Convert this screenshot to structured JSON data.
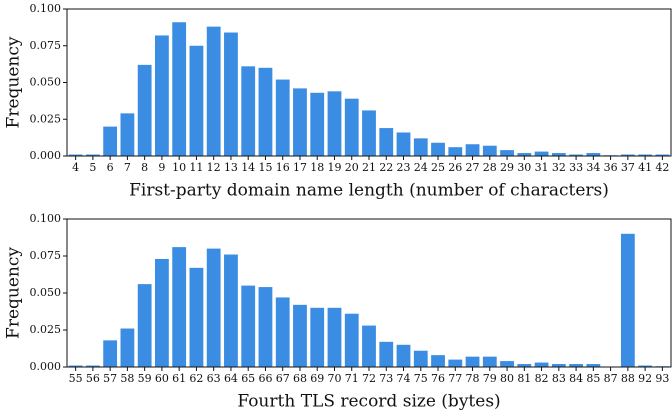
{
  "chart_data": [
    {
      "type": "bar",
      "x_label": "First-party domain name length (number of characters)",
      "y_label": "Frequency",
      "color": "#3a8de3",
      "categories": [
        "4",
        "5",
        "6",
        "7",
        "8",
        "9",
        "10",
        "11",
        "12",
        "13",
        "14",
        "15",
        "16",
        "17",
        "18",
        "19",
        "20",
        "21",
        "22",
        "23",
        "24",
        "25",
        "26",
        "27",
        "28",
        "29",
        "30",
        "31",
        "32",
        "33",
        "34",
        "36",
        "37",
        "41",
        "42"
      ],
      "values": [
        0.001,
        0.001,
        0.02,
        0.029,
        0.062,
        0.082,
        0.091,
        0.075,
        0.088,
        0.084,
        0.061,
        0.06,
        0.052,
        0.046,
        0.043,
        0.044,
        0.039,
        0.031,
        0.019,
        0.016,
        0.012,
        0.009,
        0.006,
        0.008,
        0.007,
        0.004,
        0.002,
        0.003,
        0.002,
        0.001,
        0.002,
        0.0005,
        0.001,
        0.001,
        0.001
      ],
      "ylim": [
        0,
        0.1
      ],
      "yticks": [
        {
          "value": 0,
          "label": "0.000"
        },
        {
          "value": 0.025,
          "label": "0.025"
        },
        {
          "value": 0.05,
          "label": "0.050"
        },
        {
          "value": 0.075,
          "label": "0.075"
        },
        {
          "value": 0.1,
          "label": "0.100"
        }
      ]
    },
    {
      "type": "bar",
      "x_label": "Fourth TLS record size (bytes)",
      "y_label": "Frequency",
      "color": "#3a8de3",
      "categories": [
        "55",
        "56",
        "57",
        "58",
        "59",
        "60",
        "61",
        "62",
        "63",
        "64",
        "65",
        "66",
        "67",
        "68",
        "69",
        "70",
        "71",
        "72",
        "73",
        "74",
        "75",
        "76",
        "77",
        "78",
        "79",
        "80",
        "81",
        "82",
        "83",
        "84",
        "85",
        "87",
        "88",
        "92",
        "93"
      ],
      "values": [
        0.001,
        0.001,
        0.018,
        0.026,
        0.056,
        0.073,
        0.081,
        0.067,
        0.08,
        0.076,
        0.055,
        0.054,
        0.047,
        0.042,
        0.04,
        0.04,
        0.036,
        0.028,
        0.017,
        0.015,
        0.011,
        0.008,
        0.005,
        0.007,
        0.007,
        0.004,
        0.002,
        0.003,
        0.002,
        0.002,
        0.002,
        0.0003,
        0.09,
        0.001,
        0.0005
      ],
      "ylim": [
        0,
        0.1
      ],
      "yticks": [
        {
          "value": 0,
          "label": "0.000"
        },
        {
          "value": 0.025,
          "label": "0.025"
        },
        {
          "value": 0.05,
          "label": "0.050"
        },
        {
          "value": 0.075,
          "label": "0.075"
        },
        {
          "value": 0.1,
          "label": "0.100"
        }
      ]
    }
  ]
}
